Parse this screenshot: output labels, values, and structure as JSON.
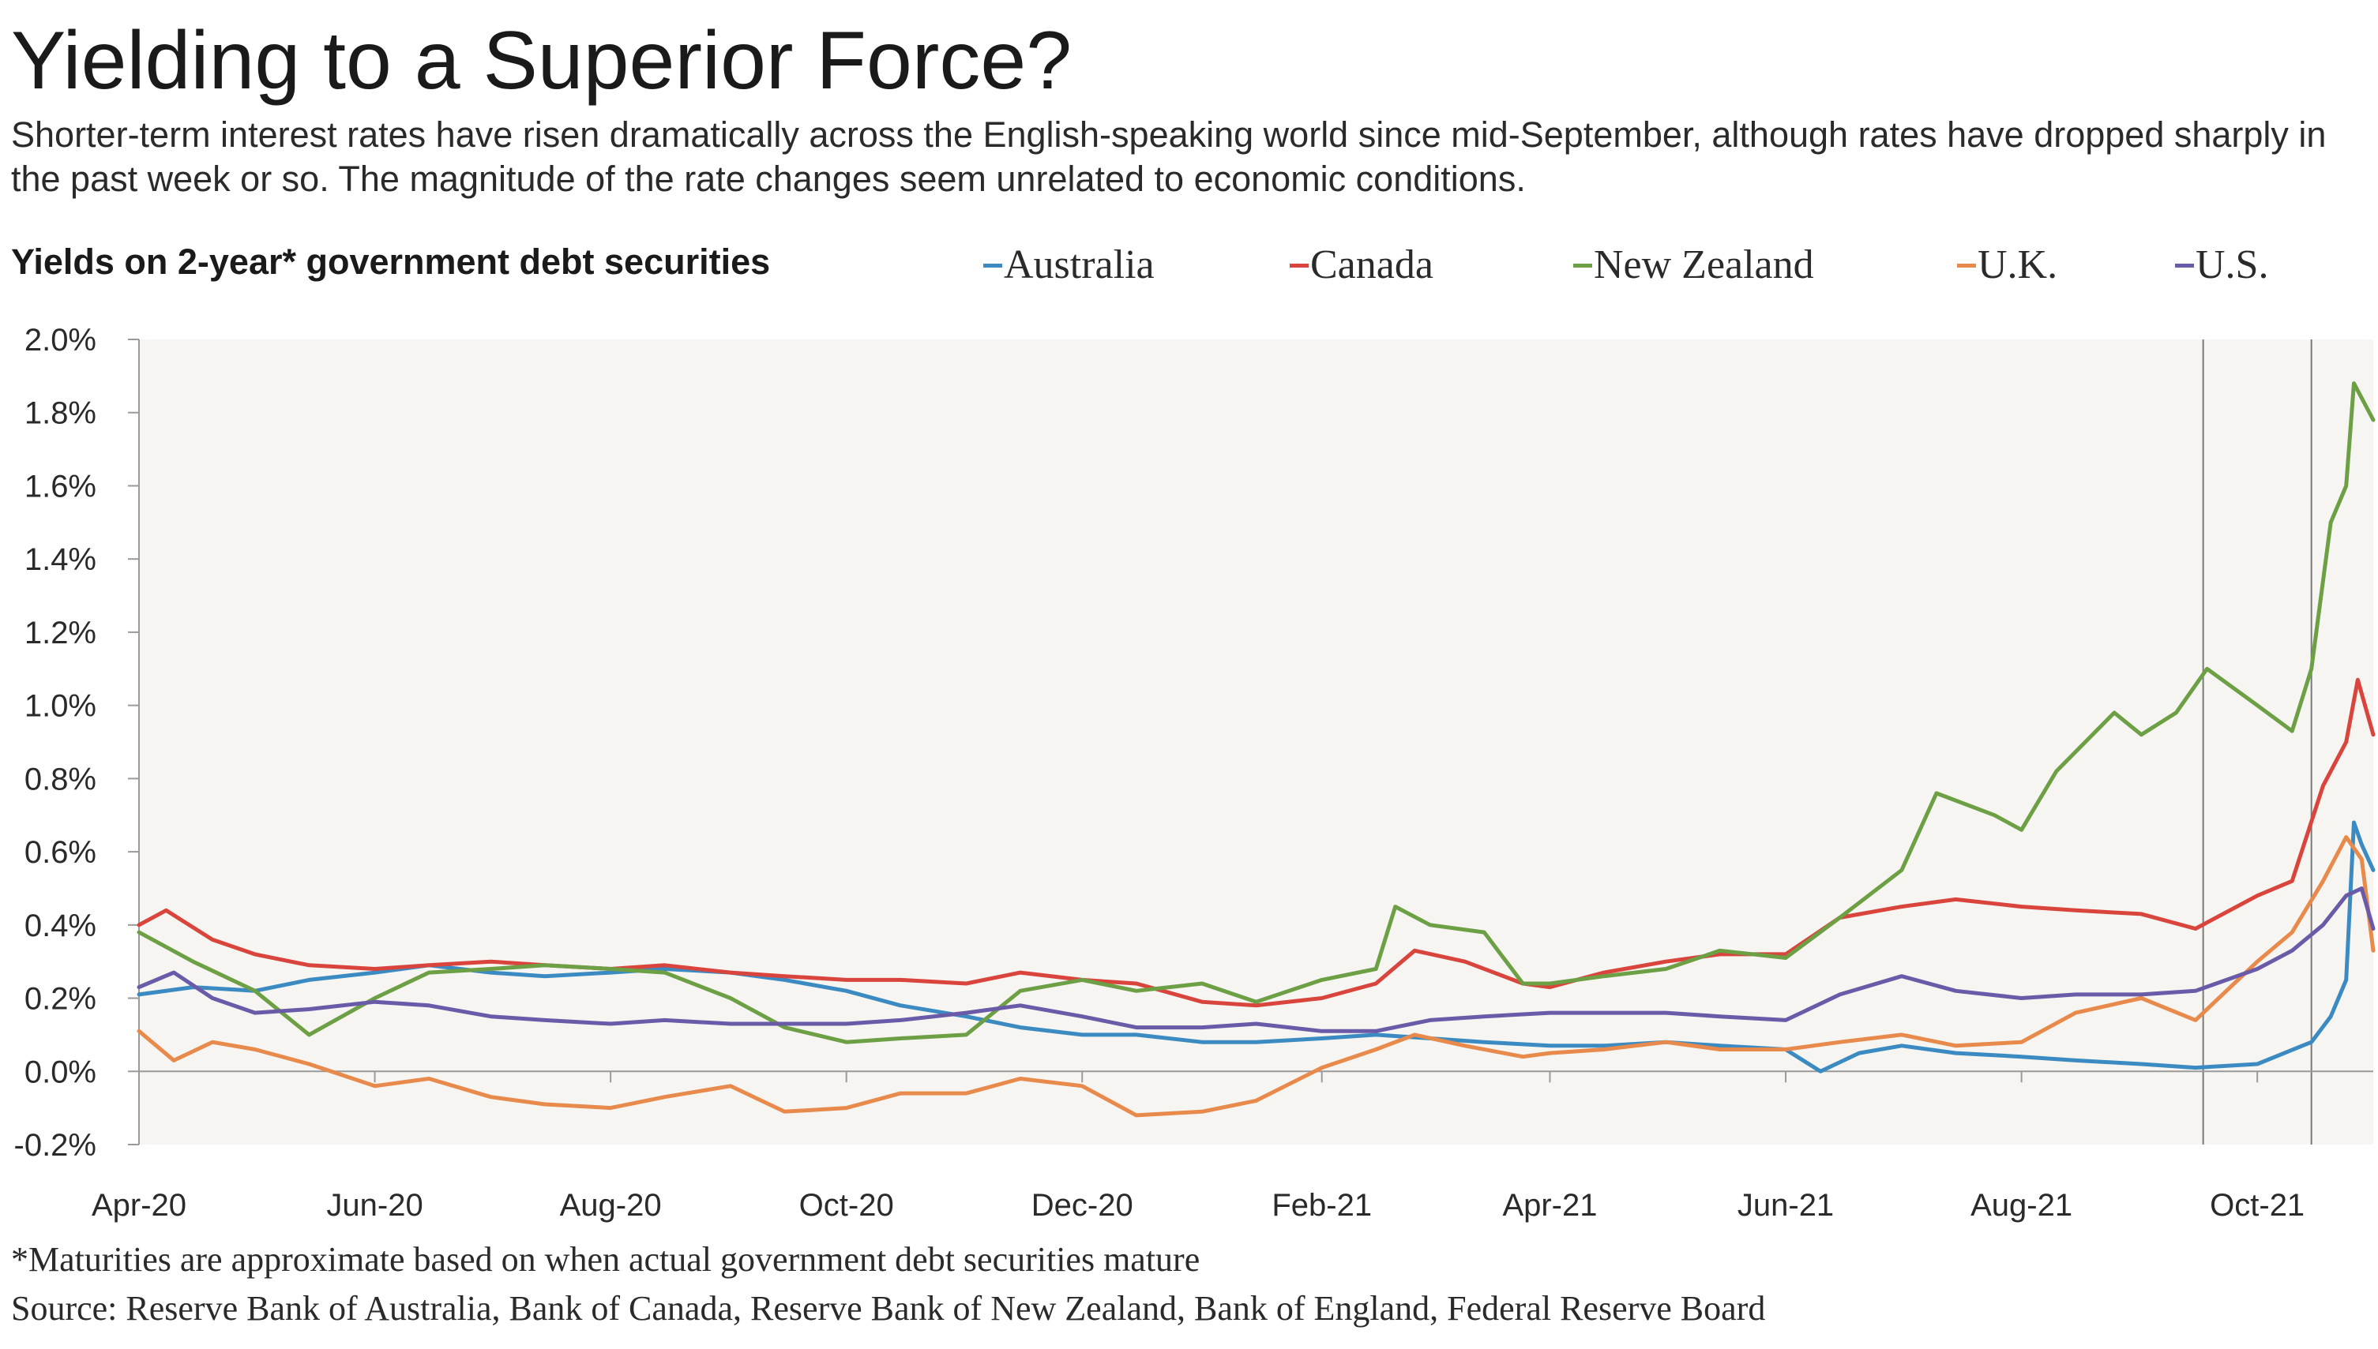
{
  "header": {
    "title": "Yielding to a Superior Force?",
    "subtitle": "Shorter-term interest rates have risen dramatically across the English-speaking world since mid-September, although rates have dropped sharply in the past week or so. The magnitude of the rate changes seem unrelated to economic conditions."
  },
  "footer": {
    "note": "*Maturities are approximate based on when actual government debt securities mature",
    "source": "Source: Reserve Bank of Australia, Bank of Canada, Reserve Bank of New Zealand, Bank of England, Federal Reserve Board"
  },
  "chart_data": {
    "type": "line",
    "title": "Yields on 2-year* government debt securities",
    "xlabel": "",
    "ylabel": "",
    "x_axis": {
      "type": "date",
      "range": [
        "2020-04-01",
        "2021-10-31"
      ],
      "ticks": [
        {
          "date": "2020-04-01",
          "label": "Apr-20"
        },
        {
          "date": "2020-06-01",
          "label": "Jun-20"
        },
        {
          "date": "2020-08-01",
          "label": "Aug-20"
        },
        {
          "date": "2020-10-01",
          "label": "Oct-20"
        },
        {
          "date": "2020-12-01",
          "label": "Dec-20"
        },
        {
          "date": "2021-02-01",
          "label": "Feb-21"
        },
        {
          "date": "2021-04-01",
          "label": "Apr-21"
        },
        {
          "date": "2021-06-01",
          "label": "Jun-21"
        },
        {
          "date": "2021-08-01",
          "label": "Aug-21"
        },
        {
          "date": "2021-10-01",
          "label": "Oct-21"
        }
      ]
    },
    "y_axis": {
      "range": [
        -0.2,
        2.0
      ],
      "ticks": [
        {
          "value": -0.2,
          "label": "-0.2%"
        },
        {
          "value": 0.0,
          "label": "0.0%"
        },
        {
          "value": 0.2,
          "label": "0.2%"
        },
        {
          "value": 0.4,
          "label": "0.4%"
        },
        {
          "value": 0.6,
          "label": "0.6%"
        },
        {
          "value": 0.8,
          "label": "0.8%"
        },
        {
          "value": 1.0,
          "label": "1.0%"
        },
        {
          "value": 1.2,
          "label": "1.2%"
        },
        {
          "value": 1.4,
          "label": "1.4%"
        },
        {
          "value": 1.6,
          "label": "1.6%"
        },
        {
          "value": 1.8,
          "label": "1.8%"
        },
        {
          "value": 2.0,
          "label": "2.0%"
        }
      ]
    },
    "grid": false,
    "legend_position": "top",
    "plot_background": "#f6f5f1",
    "reference_lines": [
      "2021-09-17",
      "2021-10-15"
    ],
    "series": [
      {
        "name": "Australia",
        "color": "#3b8bc2",
        "points": [
          [
            "2020-04-01",
            0.21
          ],
          [
            "2020-04-15",
            0.23
          ],
          [
            "2020-05-01",
            0.22
          ],
          [
            "2020-05-15",
            0.25
          ],
          [
            "2020-06-01",
            0.27
          ],
          [
            "2020-06-15",
            0.29
          ],
          [
            "2020-07-01",
            0.27
          ],
          [
            "2020-07-15",
            0.26
          ],
          [
            "2020-08-01",
            0.27
          ],
          [
            "2020-08-15",
            0.28
          ],
          [
            "2020-09-01",
            0.27
          ],
          [
            "2020-09-15",
            0.25
          ],
          [
            "2020-10-01",
            0.22
          ],
          [
            "2020-10-15",
            0.18
          ],
          [
            "2020-11-01",
            0.15
          ],
          [
            "2020-11-15",
            0.12
          ],
          [
            "2020-12-01",
            0.1
          ],
          [
            "2020-12-15",
            0.1
          ],
          [
            "2021-01-01",
            0.08
          ],
          [
            "2021-01-15",
            0.08
          ],
          [
            "2021-02-01",
            0.09
          ],
          [
            "2021-02-15",
            0.1
          ],
          [
            "2021-03-01",
            0.09
          ],
          [
            "2021-03-15",
            0.08
          ],
          [
            "2021-04-01",
            0.07
          ],
          [
            "2021-04-15",
            0.07
          ],
          [
            "2021-05-01",
            0.08
          ],
          [
            "2021-05-15",
            0.07
          ],
          [
            "2021-06-01",
            0.06
          ],
          [
            "2021-06-10",
            0.0
          ],
          [
            "2021-06-20",
            0.05
          ],
          [
            "2021-07-01",
            0.07
          ],
          [
            "2021-07-15",
            0.05
          ],
          [
            "2021-08-01",
            0.04
          ],
          [
            "2021-08-15",
            0.03
          ],
          [
            "2021-09-01",
            0.02
          ],
          [
            "2021-09-15",
            0.01
          ],
          [
            "2021-10-01",
            0.02
          ],
          [
            "2021-10-15",
            0.08
          ],
          [
            "2021-10-20",
            0.15
          ],
          [
            "2021-10-24",
            0.25
          ],
          [
            "2021-10-26",
            0.68
          ],
          [
            "2021-10-28",
            0.62
          ],
          [
            "2021-10-31",
            0.55
          ]
        ]
      },
      {
        "name": "Canada",
        "color": "#d9453d",
        "points": [
          [
            "2020-04-01",
            0.4
          ],
          [
            "2020-04-08",
            0.44
          ],
          [
            "2020-04-20",
            0.36
          ],
          [
            "2020-05-01",
            0.32
          ],
          [
            "2020-05-15",
            0.29
          ],
          [
            "2020-06-01",
            0.28
          ],
          [
            "2020-06-15",
            0.29
          ],
          [
            "2020-07-01",
            0.3
          ],
          [
            "2020-07-15",
            0.29
          ],
          [
            "2020-08-01",
            0.28
          ],
          [
            "2020-08-15",
            0.29
          ],
          [
            "2020-09-01",
            0.27
          ],
          [
            "2020-09-15",
            0.26
          ],
          [
            "2020-10-01",
            0.25
          ],
          [
            "2020-10-15",
            0.25
          ],
          [
            "2020-11-01",
            0.24
          ],
          [
            "2020-11-15",
            0.27
          ],
          [
            "2020-12-01",
            0.25
          ],
          [
            "2020-12-15",
            0.24
          ],
          [
            "2021-01-01",
            0.19
          ],
          [
            "2021-01-15",
            0.18
          ],
          [
            "2021-02-01",
            0.2
          ],
          [
            "2021-02-15",
            0.24
          ],
          [
            "2021-02-25",
            0.33
          ],
          [
            "2021-03-10",
            0.3
          ],
          [
            "2021-03-25",
            0.24
          ],
          [
            "2021-04-01",
            0.23
          ],
          [
            "2021-04-15",
            0.27
          ],
          [
            "2021-05-01",
            0.3
          ],
          [
            "2021-05-15",
            0.32
          ],
          [
            "2021-06-01",
            0.32
          ],
          [
            "2021-06-15",
            0.42
          ],
          [
            "2021-07-01",
            0.45
          ],
          [
            "2021-07-15",
            0.47
          ],
          [
            "2021-08-01",
            0.45
          ],
          [
            "2021-08-15",
            0.44
          ],
          [
            "2021-09-01",
            0.43
          ],
          [
            "2021-09-15",
            0.39
          ],
          [
            "2021-10-01",
            0.48
          ],
          [
            "2021-10-10",
            0.52
          ],
          [
            "2021-10-18",
            0.78
          ],
          [
            "2021-10-24",
            0.9
          ],
          [
            "2021-10-27",
            1.07
          ],
          [
            "2021-10-31",
            0.92
          ]
        ]
      },
      {
        "name": "New Zealand",
        "color": "#6d9f45",
        "points": [
          [
            "2020-04-01",
            0.38
          ],
          [
            "2020-04-15",
            0.3
          ],
          [
            "2020-05-01",
            0.22
          ],
          [
            "2020-05-15",
            0.1
          ],
          [
            "2020-06-01",
            0.2
          ],
          [
            "2020-06-15",
            0.27
          ],
          [
            "2020-07-01",
            0.28
          ],
          [
            "2020-07-15",
            0.29
          ],
          [
            "2020-08-01",
            0.28
          ],
          [
            "2020-08-15",
            0.27
          ],
          [
            "2020-09-01",
            0.2
          ],
          [
            "2020-09-15",
            0.12
          ],
          [
            "2020-10-01",
            0.08
          ],
          [
            "2020-10-15",
            0.09
          ],
          [
            "2020-11-01",
            0.1
          ],
          [
            "2020-11-15",
            0.22
          ],
          [
            "2020-12-01",
            0.25
          ],
          [
            "2020-12-15",
            0.22
          ],
          [
            "2021-01-01",
            0.24
          ],
          [
            "2021-01-15",
            0.19
          ],
          [
            "2021-02-01",
            0.25
          ],
          [
            "2021-02-15",
            0.28
          ],
          [
            "2021-02-20",
            0.45
          ],
          [
            "2021-03-01",
            0.4
          ],
          [
            "2021-03-15",
            0.38
          ],
          [
            "2021-03-25",
            0.24
          ],
          [
            "2021-04-01",
            0.24
          ],
          [
            "2021-04-15",
            0.26
          ],
          [
            "2021-05-01",
            0.28
          ],
          [
            "2021-05-15",
            0.33
          ],
          [
            "2021-06-01",
            0.31
          ],
          [
            "2021-06-15",
            0.42
          ],
          [
            "2021-07-01",
            0.55
          ],
          [
            "2021-07-10",
            0.76
          ],
          [
            "2021-07-25",
            0.7
          ],
          [
            "2021-08-01",
            0.66
          ],
          [
            "2021-08-10",
            0.82
          ],
          [
            "2021-08-25",
            0.98
          ],
          [
            "2021-09-01",
            0.92
          ],
          [
            "2021-09-10",
            0.98
          ],
          [
            "2021-09-18",
            1.1
          ],
          [
            "2021-10-01",
            1.0
          ],
          [
            "2021-10-10",
            0.93
          ],
          [
            "2021-10-15",
            1.1
          ],
          [
            "2021-10-20",
            1.5
          ],
          [
            "2021-10-24",
            1.6
          ],
          [
            "2021-10-26",
            1.88
          ],
          [
            "2021-10-31",
            1.78
          ]
        ]
      },
      {
        "name": "U.K.",
        "color": "#e88a4b",
        "points": [
          [
            "2020-04-01",
            0.11
          ],
          [
            "2020-04-10",
            0.03
          ],
          [
            "2020-04-20",
            0.08
          ],
          [
            "2020-05-01",
            0.06
          ],
          [
            "2020-05-15",
            0.02
          ],
          [
            "2020-06-01",
            -0.04
          ],
          [
            "2020-06-15",
            -0.02
          ],
          [
            "2020-07-01",
            -0.07
          ],
          [
            "2020-07-15",
            -0.09
          ],
          [
            "2020-08-01",
            -0.1
          ],
          [
            "2020-08-15",
            -0.07
          ],
          [
            "2020-09-01",
            -0.04
          ],
          [
            "2020-09-15",
            -0.11
          ],
          [
            "2020-10-01",
            -0.1
          ],
          [
            "2020-10-15",
            -0.06
          ],
          [
            "2020-11-01",
            -0.06
          ],
          [
            "2020-11-15",
            -0.02
          ],
          [
            "2020-12-01",
            -0.04
          ],
          [
            "2020-12-15",
            -0.12
          ],
          [
            "2021-01-01",
            -0.11
          ],
          [
            "2021-01-15",
            -0.08
          ],
          [
            "2021-02-01",
            0.01
          ],
          [
            "2021-02-15",
            0.06
          ],
          [
            "2021-02-25",
            0.1
          ],
          [
            "2021-03-10",
            0.07
          ],
          [
            "2021-03-25",
            0.04
          ],
          [
            "2021-04-01",
            0.05
          ],
          [
            "2021-04-15",
            0.06
          ],
          [
            "2021-05-01",
            0.08
          ],
          [
            "2021-05-15",
            0.06
          ],
          [
            "2021-06-01",
            0.06
          ],
          [
            "2021-06-15",
            0.08
          ],
          [
            "2021-07-01",
            0.1
          ],
          [
            "2021-07-15",
            0.07
          ],
          [
            "2021-08-01",
            0.08
          ],
          [
            "2021-08-15",
            0.16
          ],
          [
            "2021-09-01",
            0.2
          ],
          [
            "2021-09-15",
            0.14
          ],
          [
            "2021-10-01",
            0.3
          ],
          [
            "2021-10-10",
            0.38
          ],
          [
            "2021-10-18",
            0.52
          ],
          [
            "2021-10-24",
            0.64
          ],
          [
            "2021-10-28",
            0.58
          ],
          [
            "2021-10-31",
            0.33
          ]
        ]
      },
      {
        "name": "U.S.",
        "color": "#6a5ba8",
        "points": [
          [
            "2020-04-01",
            0.23
          ],
          [
            "2020-04-10",
            0.27
          ],
          [
            "2020-04-20",
            0.2
          ],
          [
            "2020-05-01",
            0.16
          ],
          [
            "2020-05-15",
            0.17
          ],
          [
            "2020-06-01",
            0.19
          ],
          [
            "2020-06-15",
            0.18
          ],
          [
            "2020-07-01",
            0.15
          ],
          [
            "2020-07-15",
            0.14
          ],
          [
            "2020-08-01",
            0.13
          ],
          [
            "2020-08-15",
            0.14
          ],
          [
            "2020-09-01",
            0.13
          ],
          [
            "2020-09-15",
            0.13
          ],
          [
            "2020-10-01",
            0.13
          ],
          [
            "2020-10-15",
            0.14
          ],
          [
            "2020-11-01",
            0.16
          ],
          [
            "2020-11-15",
            0.18
          ],
          [
            "2020-12-01",
            0.15
          ],
          [
            "2020-12-15",
            0.12
          ],
          [
            "2021-01-01",
            0.12
          ],
          [
            "2021-01-15",
            0.13
          ],
          [
            "2021-02-01",
            0.11
          ],
          [
            "2021-02-15",
            0.11
          ],
          [
            "2021-03-01",
            0.14
          ],
          [
            "2021-03-15",
            0.15
          ],
          [
            "2021-04-01",
            0.16
          ],
          [
            "2021-04-15",
            0.16
          ],
          [
            "2021-05-01",
            0.16
          ],
          [
            "2021-05-15",
            0.15
          ],
          [
            "2021-06-01",
            0.14
          ],
          [
            "2021-06-15",
            0.21
          ],
          [
            "2021-07-01",
            0.26
          ],
          [
            "2021-07-15",
            0.22
          ],
          [
            "2021-08-01",
            0.2
          ],
          [
            "2021-08-15",
            0.21
          ],
          [
            "2021-09-01",
            0.21
          ],
          [
            "2021-09-15",
            0.22
          ],
          [
            "2021-10-01",
            0.28
          ],
          [
            "2021-10-10",
            0.33
          ],
          [
            "2021-10-18",
            0.4
          ],
          [
            "2021-10-24",
            0.48
          ],
          [
            "2021-10-28",
            0.5
          ],
          [
            "2021-10-31",
            0.39
          ]
        ]
      }
    ]
  }
}
